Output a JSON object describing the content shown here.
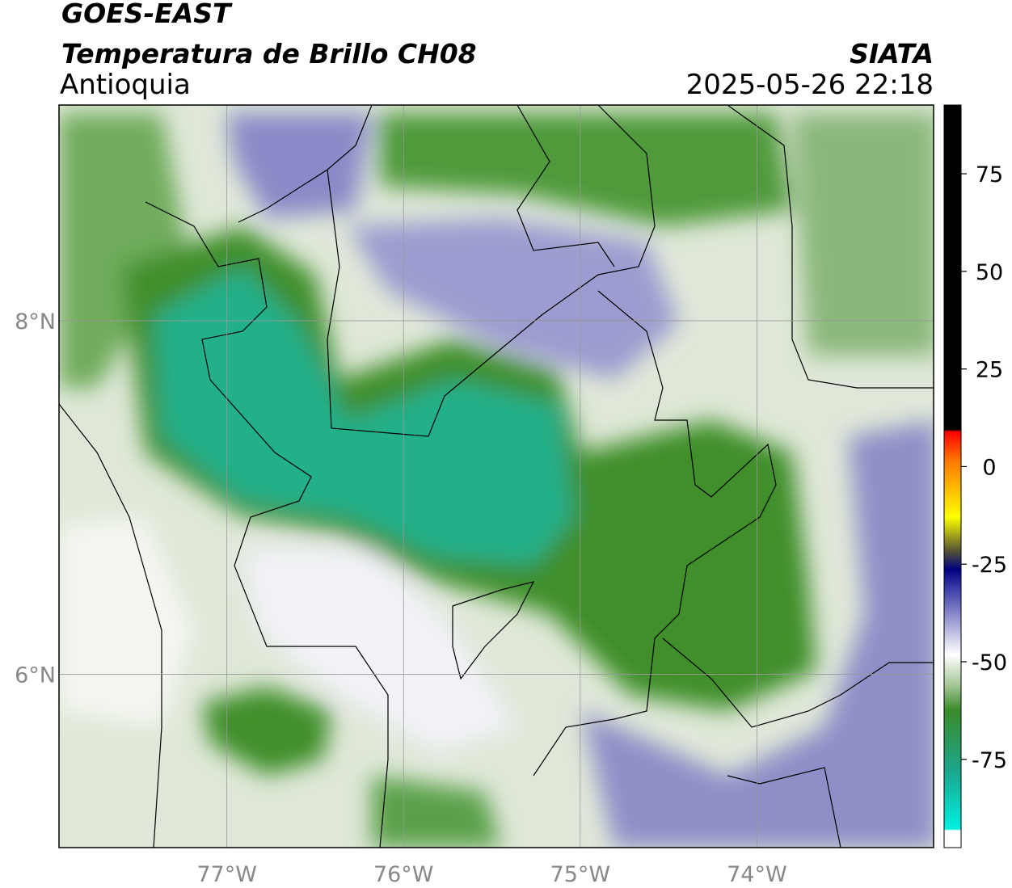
{
  "header": {
    "satellite": "GOES-EAST",
    "product": "Temperatura de Brillo CH08",
    "region": "Antioquia",
    "source": "SIATA",
    "datetime": "2025-05-26 22:18"
  },
  "map": {
    "lonlim": [
      -77.95,
      -73.0
    ],
    "latlim": [
      5.02,
      9.22
    ],
    "lon_ticks": [
      {
        "value": -77,
        "label": "77°W"
      },
      {
        "value": -76,
        "label": "76°W"
      },
      {
        "value": -75,
        "label": "75°W"
      },
      {
        "value": -74,
        "label": "74°W"
      }
    ],
    "lat_ticks": [
      {
        "value": 8,
        "label": "8°N"
      },
      {
        "value": 6,
        "label": "6°N"
      }
    ],
    "grid": true
  },
  "colorbar": {
    "lim": [
      -97.6,
      92.6
    ],
    "ticks": [
      75,
      50,
      25,
      0,
      -25,
      -50,
      -75
    ]
  }
}
